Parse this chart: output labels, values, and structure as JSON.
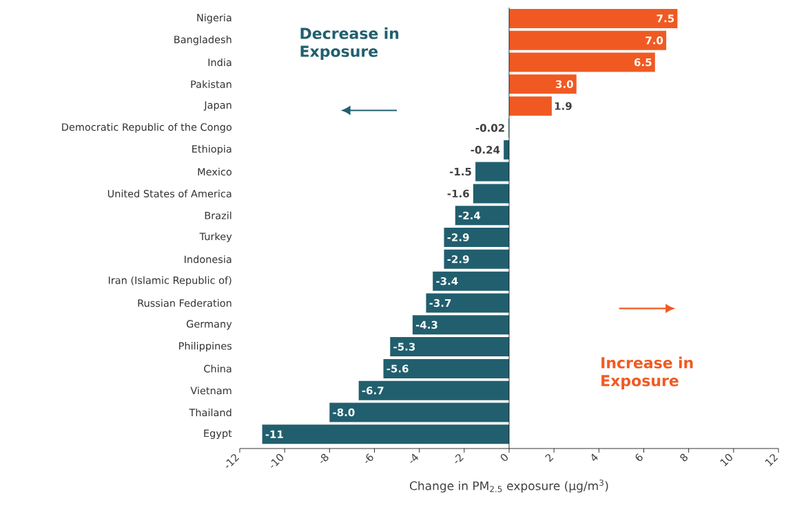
{
  "chart_data": {
    "type": "bar",
    "orientation": "horizontal",
    "categories": [
      "Nigeria",
      "Bangladesh",
      "India",
      "Pakistan",
      "Japan",
      "Democratic Republic of the Congo",
      "Ethiopia",
      "Mexico",
      "United States of America",
      "Brazil",
      "Turkey",
      "Indonesia",
      "Iran (Islamic Republic of)",
      "Russian Federation",
      "Germany",
      "Philippines",
      "China",
      "Vietnam",
      "Thailand",
      "Egypt"
    ],
    "values": [
      7.5,
      7.0,
      6.5,
      3.0,
      1.9,
      -0.02,
      -0.24,
      -1.5,
      -1.6,
      -2.4,
      -2.9,
      -2.9,
      -3.4,
      -3.7,
      -4.3,
      -5.3,
      -5.6,
      -6.7,
      -8.0,
      -11
    ],
    "value_labels": [
      "7.5",
      "7.0",
      "6.5",
      "3.0",
      "1.9",
      "-0.02",
      "-0.24",
      "-1.5",
      "-1.6",
      "-2.4",
      "-2.9",
      "-2.9",
      "-3.4",
      "-3.7",
      "-4.3",
      "-5.3",
      "-5.6",
      "-6.7",
      "-8.0",
      "-11"
    ],
    "colors": [
      "#f05a22",
      "#f05a22",
      "#f05a22",
      "#f05a22",
      "#f05a22",
      "#215f6e",
      "#215f6e",
      "#215f6e",
      "#215f6e",
      "#215f6e",
      "#215f6e",
      "#215f6e",
      "#215f6e",
      "#215f6e",
      "#215f6e",
      "#215f6e",
      "#215f6e",
      "#215f6e",
      "#215f6e",
      "#215f6e"
    ],
    "xlabel": "Change in PM$_{2.5}$ exposure (µg/m$^{3}$)",
    "xlim": [
      -12,
      12
    ],
    "xticks": [
      -12,
      -10,
      -8,
      -6,
      -4,
      -2,
      0,
      2,
      4,
      6,
      8,
      10,
      12
    ],
    "annotations": [
      "Decrease in Exposure",
      "Increase in Exposure"
    ]
  }
}
